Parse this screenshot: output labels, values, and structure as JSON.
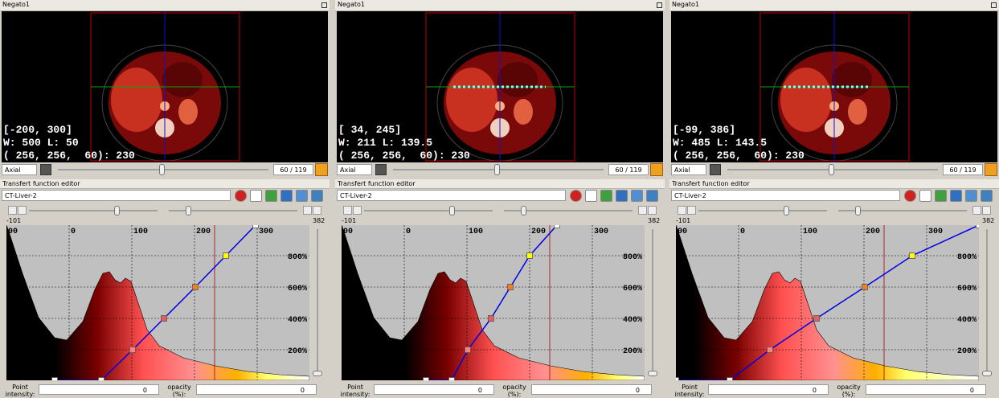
{
  "panels": [
    {
      "title": "Negato1",
      "overlay": [
        "[-200, 300]",
        "W: 500 L: 50",
        "( 256, 256,  60): 230"
      ],
      "view": "Axial",
      "slice": "60 / 119",
      "editor_title": "Transfert function editor",
      "preset": "CT-Liver-2",
      "range_min": "-101",
      "range_max": "382",
      "x_labels": [
        "00",
        "0",
        "100",
        "200",
        "300"
      ],
      "y_labels": [
        "800%",
        "600%",
        "400%",
        "200%"
      ],
      "point_label": "Point intensity:",
      "point_value": "0",
      "opacity_label": "opacity (%):",
      "opacity_value": "0"
    },
    {
      "title": "Negato1",
      "overlay": [
        "[ 34, 245]",
        "W: 211 L: 139.5",
        "( 256, 256,  60): 230"
      ],
      "view": "Axial",
      "slice": "60 / 119",
      "editor_title": "Transfert function editor",
      "preset": "CT-Liver-2",
      "range_min": "-101",
      "range_max": "382",
      "x_labels": [
        "00",
        "0",
        "100",
        "200",
        "300"
      ],
      "y_labels": [
        "800%",
        "600%",
        "400%",
        "200%"
      ],
      "point_label": "Point intensity:",
      "point_value": "0",
      "opacity_label": "opacity (%):",
      "opacity_value": "0"
    },
    {
      "title": "Negato1",
      "overlay": [
        "[-99, 386]",
        "W: 485 L: 143.5",
        "( 256, 256,  60): 230"
      ],
      "view": "Axial",
      "slice": "60 / 119",
      "editor_title": "Transfert function editor",
      "preset": "CT-Liver-2",
      "range_min": "-101",
      "range_max": "382",
      "x_labels": [
        "00",
        "0",
        "100",
        "200",
        "300"
      ],
      "y_labels": [
        "800%",
        "600%",
        "400%",
        "200%"
      ],
      "point_label": "Point intensity:",
      "point_value": "0",
      "opacity_label": "opacity (%):",
      "opacity_value": "0"
    }
  ]
}
